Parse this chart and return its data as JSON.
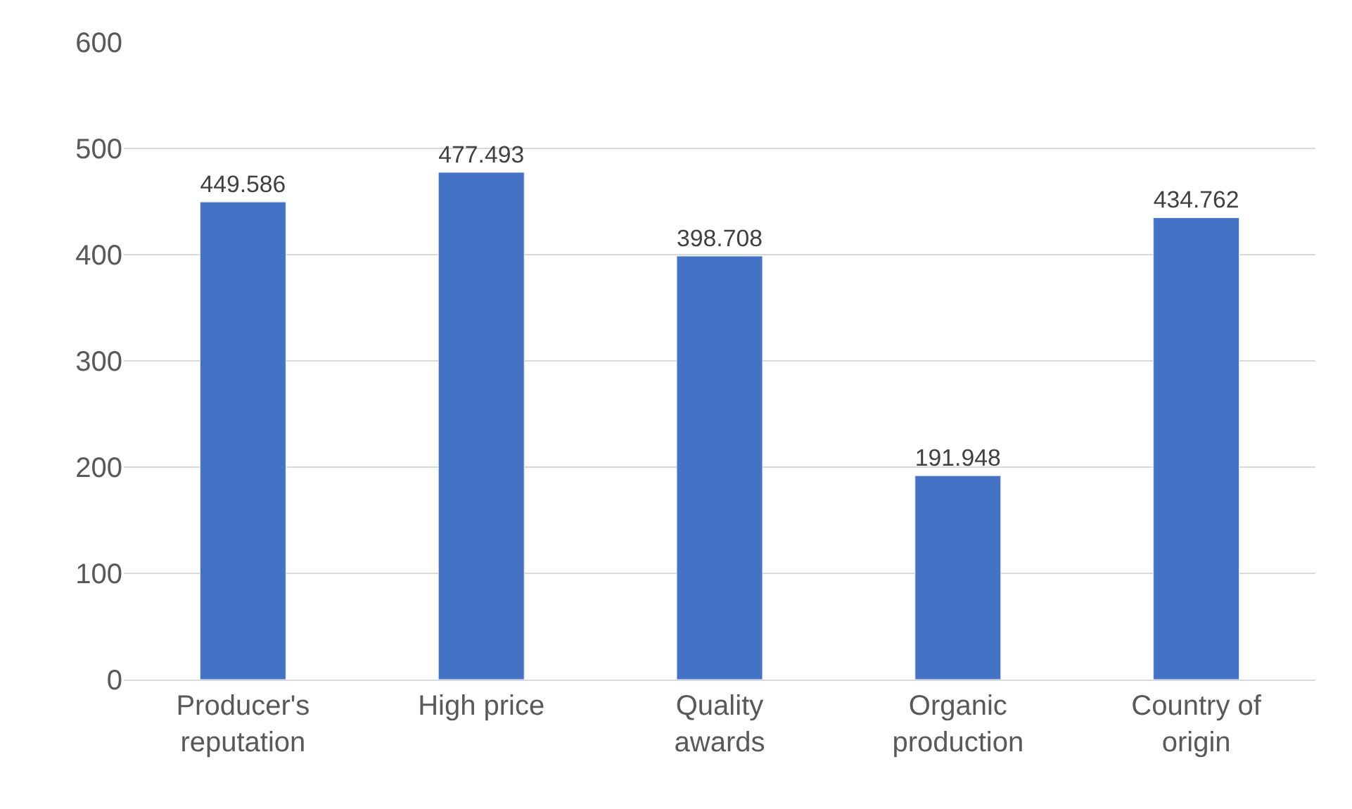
{
  "chart_data": {
    "type": "bar",
    "categories": [
      "Producer's reputation",
      "High price",
      "Quality awards",
      "Organic production",
      "Country of origin"
    ],
    "values": [
      449.586,
      477.493,
      398.708,
      191.948,
      434.762
    ],
    "color": "#4472c4",
    "ylim": [
      0,
      600
    ],
    "yticks": [
      0,
      100,
      200,
      300,
      400,
      500,
      600
    ],
    "grid": "y",
    "data_labels": true
  }
}
